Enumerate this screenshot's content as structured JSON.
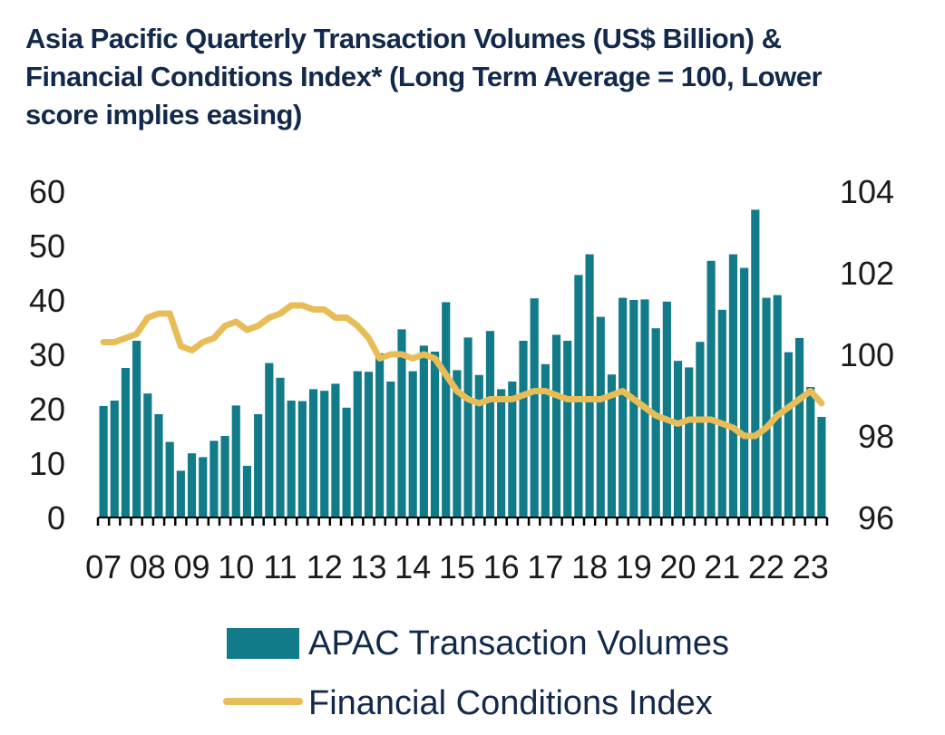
{
  "chart_data": {
    "type": "bar",
    "title_lines": [
      "Asia Pacific Quarterly Transaction Volumes (US$ Billion) &",
      "Financial Conditions Index* (Long Term Average = 100, Lower",
      "score implies easing)"
    ],
    "x_tick_labels": [
      "07",
      "08",
      "09",
      "10",
      "11",
      "12",
      "13",
      "14",
      "15",
      "16",
      "17",
      "18",
      "19",
      "20",
      "21",
      "22",
      "23"
    ],
    "y_left": {
      "ylim": [
        0,
        60
      ],
      "ticks": [
        "0",
        "10",
        "20",
        "30",
        "40",
        "50",
        "60"
      ]
    },
    "y_right": {
      "ylim": [
        96,
        104
      ],
      "ticks": [
        "96",
        "98",
        "100",
        "102",
        "104"
      ]
    },
    "grid": false,
    "legend_placement": "bottom",
    "colors": {
      "bar": "#127b8a",
      "line": "#e8bd58",
      "axis": "#000000",
      "title": "#13294b"
    },
    "series": [
      {
        "name": "APAC Transaction Volumes",
        "type": "bar",
        "axis": "left",
        "values": [
          20.5,
          21.5,
          27.5,
          32.5,
          22.8,
          19,
          13.9,
          8.6,
          11.8,
          11.1,
          14.1,
          15,
          20.6,
          9.5,
          19,
          28.4,
          25.7,
          21.5,
          21.4,
          23.6,
          23.3,
          24.6,
          20.2,
          26.9,
          26.8,
          30.2,
          25,
          34.6,
          26.9,
          31.6,
          30.5,
          39.6,
          27.1,
          33.1,
          26.2,
          34.3,
          23.6,
          25,
          32.5,
          40.3,
          28.2,
          33.6,
          32.5,
          44.6,
          48.4,
          36.9,
          26.3,
          40.4,
          40,
          40.1,
          34.8,
          39.7,
          28.8,
          27.6,
          32.3,
          47.2,
          38.2,
          48.4,
          45.9,
          56.6,
          40.4,
          40.9,
          30.4,
          33,
          24,
          18.5
        ]
      },
      {
        "name": "Financial Conditions Index",
        "type": "line",
        "axis": "right",
        "values": [
          100.3,
          100.3,
          100.4,
          100.5,
          100.9,
          101.0,
          101.0,
          100.2,
          100.1,
          100.3,
          100.4,
          100.7,
          100.8,
          100.6,
          100.7,
          100.9,
          101.0,
          101.2,
          101.2,
          101.1,
          101.1,
          100.9,
          100.9,
          100.7,
          100.4,
          99.9,
          100.0,
          100.0,
          99.9,
          100.0,
          99.9,
          99.5,
          99.1,
          98.9,
          98.8,
          98.9,
          98.9,
          98.9,
          99.0,
          99.1,
          99.1,
          99.0,
          98.9,
          98.9,
          98.9,
          98.9,
          99.0,
          99.1,
          98.9,
          98.7,
          98.5,
          98.4,
          98.3,
          98.4,
          98.4,
          98.4,
          98.3,
          98.2,
          98.0,
          98.0,
          98.2,
          98.5,
          98.7,
          98.9,
          99.1,
          98.8
        ]
      }
    ]
  }
}
